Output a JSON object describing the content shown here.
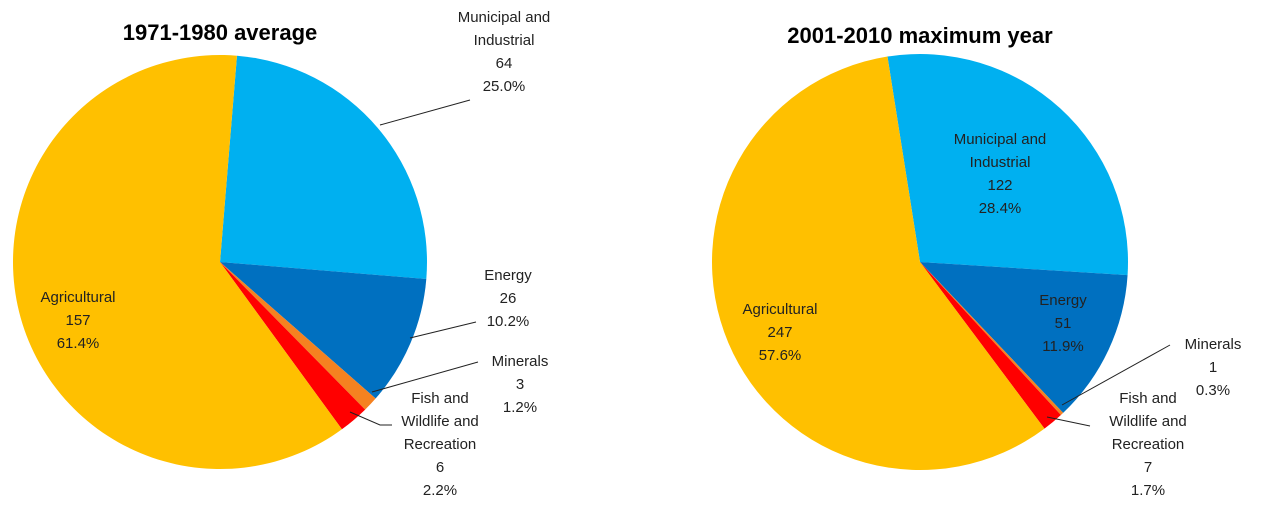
{
  "chart_data": [
    {
      "type": "pie",
      "title": "1971-1980 average",
      "categories": [
        "Municipal and Industrial",
        "Energy",
        "Minerals",
        "Fish and Wildlife and Recreation",
        "Agricultural"
      ],
      "values": [
        64,
        26,
        3,
        6,
        157
      ],
      "percent_labels": [
        "25.0%",
        "10.2%",
        "1.2%",
        "2.2%",
        "61.4%"
      ],
      "colors": [
        "#00b0f0",
        "#0070c0",
        "#f58220",
        "#ff0000",
        "#ffc000"
      ]
    },
    {
      "type": "pie",
      "title": "2001-2010 maximum year",
      "categories": [
        "Municipal and Industrial",
        "Energy",
        "Minerals",
        "Fish and Wildlife and Recreation",
        "Agricultural"
      ],
      "values": [
        122,
        51,
        1,
        7,
        247
      ],
      "percent_labels": [
        "28.4%",
        "11.9%",
        "0.3%",
        "1.7%",
        "57.6%"
      ],
      "colors": [
        "#00b0f0",
        "#0070c0",
        "#f58220",
        "#ff0000",
        "#ffc000"
      ]
    }
  ]
}
